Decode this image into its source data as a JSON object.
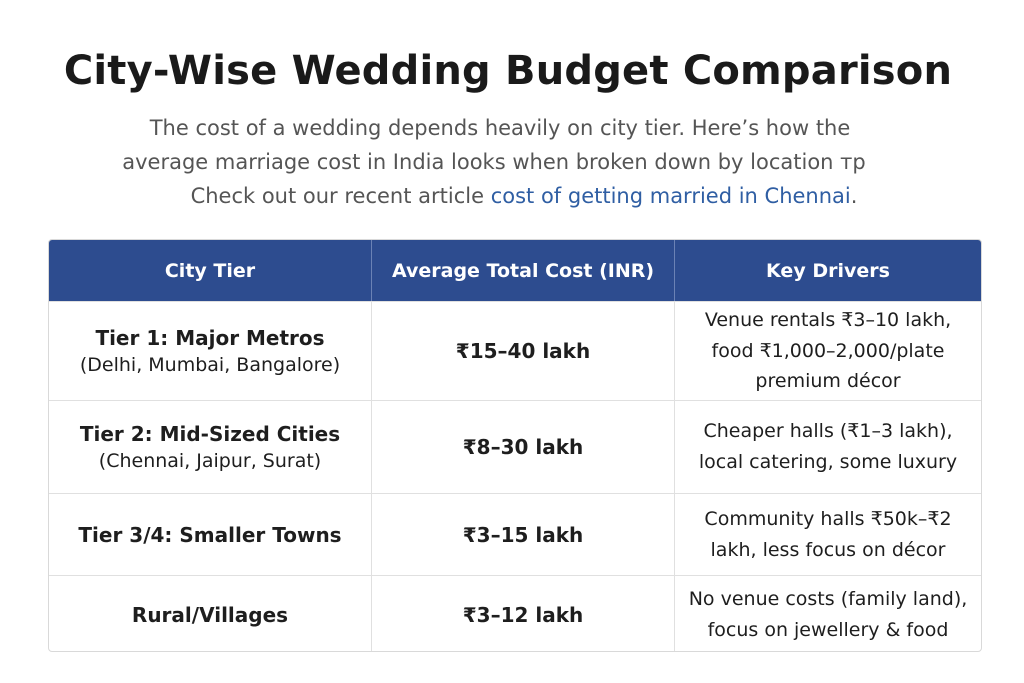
{
  "title": "City-Wise Wedding Budget Comparison",
  "intro": {
    "line1": "The cost of a wedding depends heavily on city tier. Here’s how the",
    "line2": "average marriage cost in India looks when broken down by location тр",
    "line3_prefix": "Check out our recent article ",
    "line3_link": "cost of getting married in Chennai",
    "line3_suffix": "."
  },
  "colors": {
    "header_bg": "#2d4c8f",
    "link": "#2f5ea3"
  },
  "table": {
    "headers": [
      "City Tier",
      "Average Total Cost (INR)",
      "Key Drivers"
    ],
    "rows": [
      {
        "tier": "Tier 1: Major Metros",
        "tier_sub": "(Delhi, Mumbai, Bangalore)",
        "cost": "₹15–40 lakh",
        "drivers_1": "Venue rentals ₹3–10 lakh,",
        "drivers_2": "food ₹1,000–2,000/plate",
        "drivers_3": "premium décor"
      },
      {
        "tier": "Tier 2: Mid-Sized Cities",
        "tier_sub": "(Chennai, Jaipur, Surat)",
        "cost": "₹8–30 lakh",
        "drivers_1": "Cheaper halls (₹1–3 lakh),",
        "drivers_2": "local catering, some luxury",
        "drivers_3": ""
      },
      {
        "tier": "Tier 3/4: Smaller Towns",
        "tier_sub": "",
        "cost": "₹3–15 lakh",
        "drivers_1": "Community halls ₹50k–₹2",
        "drivers_2": "lakh, less focus on décor",
        "drivers_3": ""
      },
      {
        "tier": "Rural/Villages",
        "tier_sub": "",
        "cost": "₹3–12 lakh",
        "drivers_1": "No venue costs (family land),",
        "drivers_2": "focus on jewellery & food",
        "drivers_3": ""
      }
    ]
  }
}
